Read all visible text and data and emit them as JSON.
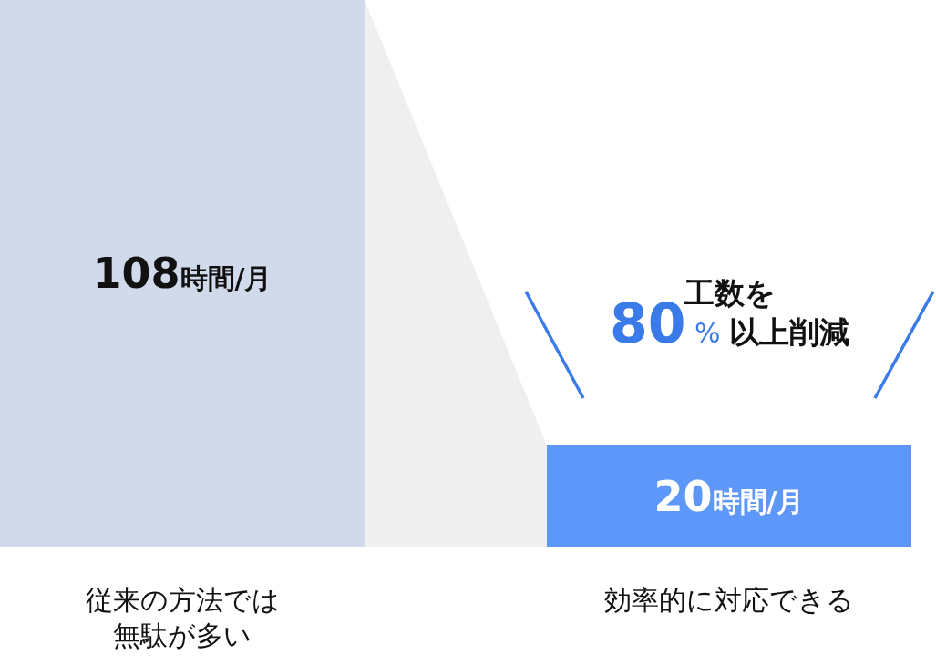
{
  "chart_data": {
    "type": "bar",
    "categories": [
      "従来の方法では無駄が多い",
      "効率的に対応できる"
    ],
    "values": [
      108,
      20
    ],
    "colors": [
      "#d0daeb",
      "#5e97fa"
    ],
    "value_labels": [
      "108時間/月",
      "20時間/月"
    ],
    "annotations": [
      "工数を\n80%以上削減"
    ],
    "tick_labels": "x"
  }
}
